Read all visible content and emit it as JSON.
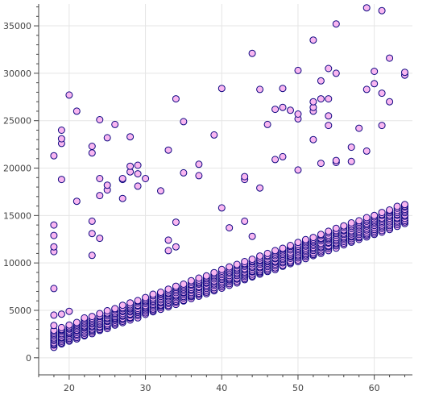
{
  "colors": {
    "fill": "#f9b6f0",
    "stroke": "#0d0680",
    "grid": "#e5e5e5",
    "axis": "#444444"
  },
  "chart_data": {
    "type": "scatter",
    "title": "",
    "xlabel": "",
    "ylabel": "",
    "xlim": [
      16,
      65
    ],
    "ylim": [
      -1800,
      37300
    ],
    "xticks": [
      20,
      30,
      40,
      50,
      60
    ],
    "yticks": [
      0,
      5000,
      10000,
      15000,
      20000,
      25000,
      30000,
      35000
    ],
    "xtick_labels": [
      "20",
      "30",
      "40",
      "50",
      "60"
    ],
    "ytick_labels": [
      "0",
      "5000",
      "10000",
      "15000",
      "20000",
      "25000",
      "30000",
      "35000"
    ],
    "grid": true,
    "legend": "none",
    "band": {
      "x_min": 18,
      "x_max": 64,
      "low_start": 1100,
      "low_slope": 282,
      "high_start": 3000,
      "high_slope": 290,
      "per_age": 12
    },
    "points": [
      [
        18,
        7300
      ],
      [
        18,
        11200
      ],
      [
        18,
        11700
      ],
      [
        18,
        12900
      ],
      [
        18,
        14000
      ],
      [
        18,
        21300
      ],
      [
        18,
        4500
      ],
      [
        18,
        3400
      ],
      [
        19,
        4600
      ],
      [
        19,
        18800
      ],
      [
        19,
        22600
      ],
      [
        19,
        23100
      ],
      [
        19,
        24000
      ],
      [
        20,
        4900
      ],
      [
        20,
        27700
      ],
      [
        21,
        16500
      ],
      [
        21,
        26000
      ],
      [
        22,
        4200
      ],
      [
        23,
        10800
      ],
      [
        23,
        13100
      ],
      [
        23,
        14400
      ],
      [
        23,
        21600
      ],
      [
        23,
        22300
      ],
      [
        24,
        12600
      ],
      [
        24,
        17100
      ],
      [
        24,
        18900
      ],
      [
        24,
        25100
      ],
      [
        25,
        17700
      ],
      [
        25,
        18200
      ],
      [
        25,
        23200
      ],
      [
        26,
        24600
      ],
      [
        27,
        16800
      ],
      [
        27,
        18800
      ],
      [
        27,
        18900
      ],
      [
        28,
        19600
      ],
      [
        28,
        20200
      ],
      [
        28,
        23300
      ],
      [
        29,
        18100
      ],
      [
        29,
        19400
      ],
      [
        29,
        20300
      ],
      [
        30,
        18900
      ],
      [
        32,
        17600
      ],
      [
        33,
        11300
      ],
      [
        33,
        12400
      ],
      [
        33,
        21900
      ],
      [
        34,
        11700
      ],
      [
        34,
        14300
      ],
      [
        34,
        27300
      ],
      [
        35,
        19500
      ],
      [
        35,
        24900
      ],
      [
        37,
        19200
      ],
      [
        37,
        20400
      ],
      [
        39,
        23500
      ],
      [
        40,
        15800
      ],
      [
        40,
        28400
      ],
      [
        41,
        13700
      ],
      [
        43,
        14400
      ],
      [
        43,
        18800
      ],
      [
        43,
        19100
      ],
      [
        44,
        12800
      ],
      [
        44,
        32100
      ],
      [
        45,
        17900
      ],
      [
        45,
        28300
      ],
      [
        46,
        24600
      ],
      [
        47,
        20900
      ],
      [
        47,
        26200
      ],
      [
        48,
        21200
      ],
      [
        48,
        26400
      ],
      [
        48,
        28400
      ],
      [
        49,
        26100
      ],
      [
        50,
        19800
      ],
      [
        50,
        25200
      ],
      [
        50,
        25700
      ],
      [
        50,
        30300
      ],
      [
        52,
        23000
      ],
      [
        52,
        26000
      ],
      [
        52,
        26400
      ],
      [
        52,
        27000
      ],
      [
        52,
        33500
      ],
      [
        53,
        20500
      ],
      [
        53,
        27300
      ],
      [
        53,
        29200
      ],
      [
        54,
        24500
      ],
      [
        54,
        25500
      ],
      [
        54,
        27300
      ],
      [
        54,
        30500
      ],
      [
        55,
        20600
      ],
      [
        55,
        20800
      ],
      [
        55,
        30000
      ],
      [
        55,
        35200
      ],
      [
        57,
        20700
      ],
      [
        57,
        22200
      ],
      [
        58,
        24200
      ],
      [
        59,
        21800
      ],
      [
        59,
        28300
      ],
      [
        59,
        36900
      ],
      [
        60,
        28900
      ],
      [
        60,
        30200
      ],
      [
        61,
        24500
      ],
      [
        61,
        27900
      ],
      [
        61,
        36600
      ],
      [
        62,
        27000
      ],
      [
        62,
        31600
      ],
      [
        64,
        29800
      ],
      [
        64,
        30100
      ]
    ]
  }
}
